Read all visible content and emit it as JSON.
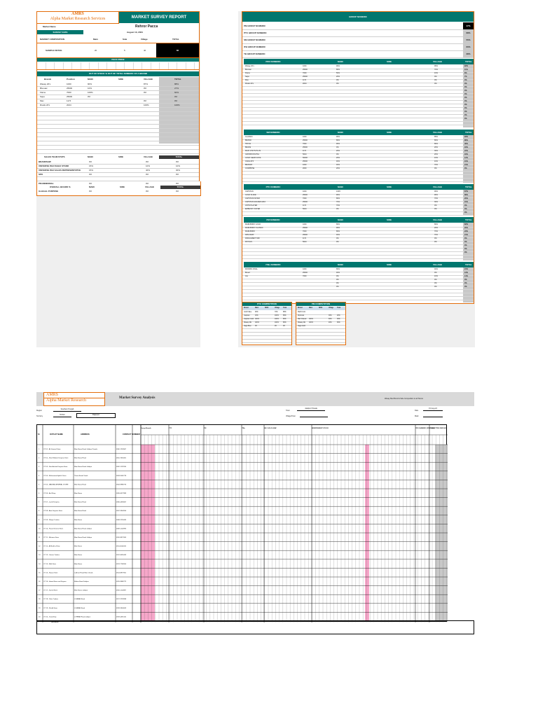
{
  "report": {
    "logo_title": "AMRS",
    "logo_subtitle": "Alpha Market Research Services",
    "title": "MARKET SURVEY REPORT",
    "market_name_label": "Market Name",
    "market_name": "Rehror Pacca",
    "survey_date_label": "SURVEY DATE",
    "survey_date": "August 13, 2024",
    "composition_label": "MARKET COMPOSITION",
    "comp_headers": [
      "Main",
      "Side",
      "Village",
      "TOTAL"
    ],
    "sample_label": "SAMPLE DETAIL",
    "sample_values": [
      "20",
      "5",
      "40",
      "65"
    ],
    "pack_price_label": "PACK PRICE",
    "oos_title": "OUT OF STOCK % OUT OF TOTAL NUMERIC OF A BRAND",
    "oos_headers": [
      "Brands",
      "Position",
      "MAIN",
      "SIDE",
      "VILLAGE",
      "TOTAL"
    ],
    "oos_rows": [
      [
        "Wasay 20's",
        "1000",
        "90%",
        "",
        "87%",
        "88%"
      ],
      [
        "Bivouac",
        "25000",
        "10%",
        "",
        "0%",
        "27%"
      ],
      [
        "Flame",
        "7000",
        "100%",
        "",
        "0%",
        "60%"
      ],
      [
        "Sapo",
        "25000",
        "0%",
        "",
        "",
        "0%"
      ],
      [
        "Max",
        "1174",
        "",
        "",
        "0%",
        "0%"
      ],
      [
        "Rivals 20's",
        "2024",
        "",
        "",
        "100%",
        "100%"
      ]
    ],
    "sales_header": [
      "SALES TEAM STATS",
      "MAIN",
      "SIDE",
      "VILLAGE",
      "TOTAL"
    ],
    "sales_rows": [
      [
        "BRANDSAW",
        "0%",
        "",
        "0%",
        "0%"
      ],
      [
        "UNIVERSE WAI RAHAI STAND",
        "15%",
        "",
        "10%",
        "10%"
      ],
      [
        "UNIVERSE WAI SALES REPRESENTATIVE",
        "15%",
        "",
        "40%",
        "30%"
      ],
      [
        "SPO",
        "0%",
        "",
        "0%",
        "0%"
      ]
    ],
    "display_header": [
      "DISPLAY POS %",
      "MAIN",
      "SIDE",
      "VILLAGE",
      "TOTAL"
    ],
    "display_rows": [
      [
        "PM MEMORIAL",
        "0%",
        "",
        "0%",
        "0%"
      ]
    ],
    "visibility_header": [
      "OVERALL BOARD %",
      "MAIN",
      "SIDE",
      "VILLAGE",
      "TOTAL"
    ],
    "visibility_rows": [
      [
        "ILLEGAL PURPOSE",
        "0%",
        "",
        "0%",
        "0%"
      ]
    ]
  },
  "group_numeric": {
    "title": "GROUP NUMERIC",
    "rows": [
      [
        "PM GROUP NUMERIC",
        "47%"
      ],
      [
        "PTC GROUP NUMERIC",
        "68%"
      ],
      [
        "SM GROUP NUMERIC",
        "55%"
      ],
      [
        "ITB GROUP NUMERIC",
        "60%"
      ],
      [
        "TB GROUP NUMERIC",
        "38%"
      ]
    ],
    "sections": [
      {
        "title": "PRO NUMERIC",
        "headers": [
          "MAIN",
          "SIDE",
          "VILLAGE",
          "TOTAL"
        ],
        "rows": [
          [
            "Wasay 20's",
            "1000",
            "90%",
            "",
            "96%",
            "92%"
          ],
          [
            "Bivouac",
            "25000",
            "80%",
            "",
            "70%",
            "11%"
          ],
          [
            "Flame",
            "7000",
            "50%",
            "",
            "10%",
            "8%"
          ],
          [
            "Sapo",
            "25000",
            "20%",
            "",
            "0%",
            "7%"
          ],
          [
            "Max",
            "1174",
            "0%",
            "",
            "0%",
            "0%"
          ],
          [
            "Rivals 20's",
            "2024",
            "0%",
            "",
            "0%",
            "0%"
          ]
        ],
        "extra_totals": [
          "0%",
          "0%",
          "0%",
          "0%",
          "0%",
          "0%",
          "0%",
          "0%",
          "0%",
          "0%"
        ]
      },
      {
        "title": "SM NUMERIC",
        "headers": [
          "MAIN",
          "SIDE",
          "VILLAGE",
          "TOTAL"
        ],
        "rows": [
          [
            "CLASSIC",
            "1000",
            "90%",
            "",
            "85%",
            "93%"
          ],
          [
            "BRAND",
            "25000",
            "80%",
            "",
            "80%",
            "88%"
          ],
          [
            "TRIVIA",
            "7000",
            "90%",
            "",
            "80%",
            "48%"
          ],
          [
            "BRAVE",
            "25000",
            "0%",
            "",
            "20%",
            "18%"
          ],
          [
            "MAXI VOLTS PLUS",
            "1174",
            "20%",
            "",
            "30%",
            "22%"
          ],
          [
            "GROWN DIGITAL",
            "5024",
            "0%",
            "",
            "20%",
            "18%"
          ],
          [
            "GOLD GEAR GOOL",
            "50000",
            "20%",
            "",
            "10%",
            "12%"
          ],
          [
            "CAFE 20'S",
            "25000",
            "40%",
            "",
            "10%",
            "10%"
          ],
          [
            "BRANDS",
            "1000",
            "40%",
            "",
            "70%",
            "21%"
          ],
          [
            "COMPRISE",
            "2000",
            "20%",
            "",
            "0%",
            "0%"
          ]
        ],
        "extra_totals": []
      },
      {
        "title": "PTC NUMERIC",
        "headers": [
          "MAIN",
          "SIDE",
          "VILLAGE",
          "TOTAL"
        ],
        "rows": [
          [
            "CAPSTAN",
            "1000",
            "100%",
            "",
            "90%",
            "67%"
          ],
          [
            "GOLD FLAKE",
            "25000",
            "90%",
            "",
            "90%",
            "68%"
          ],
          [
            "CAPSTAN FILTER",
            "7000",
            "80%",
            "",
            "70%",
            "20%"
          ],
          [
            "CAPSTAN GOLDEN MAX",
            "25000",
            "70%",
            "",
            "30%",
            "15%"
          ],
          [
            "JOHN PLAYER",
            "1174",
            "70%",
            "",
            "0%",
            "0%"
          ],
          [
            "EMBASSY FILTER",
            "5024",
            "0%",
            "",
            "0%",
            "0%"
          ]
        ],
        "extra_totals": [
          "0%"
        ]
      },
      {
        "title": "PM NUMERIC",
        "headers": [
          "MAIN",
          "SIDE",
          "VILLAGE",
          "TOTAL"
        ],
        "rows": [
          [
            "MARLBORO GOLD",
            "1000",
            "80%",
            "",
            "80%",
            "82%"
          ],
          [
            "MARLBORO CLASSIC",
            "25000",
            "90%",
            "",
            "20%",
            "20%"
          ],
          [
            "MARLBORO",
            "7000",
            "80%",
            "",
            "70%",
            "23%"
          ],
          [
            "DIPLOMAT",
            "25000",
            "40%",
            "",
            "70%",
            "21%"
          ],
          [
            "PARLIAMENT MM",
            "1174",
            "0%",
            "",
            "0%",
            "0%"
          ],
          [
            "ROYALS",
            "5024",
            "0%",
            "",
            "0%",
            "0%"
          ]
        ],
        "extra_totals": [
          "0%",
          "0%",
          "0%"
        ]
      },
      {
        "title": "ITBs NUMERIC",
        "headers": [
          "MAIN",
          "SIDE",
          "VILLAGE",
          "TOTAL"
        ],
        "rows": [
          [
            "MORRIS FINAL",
            "1000",
            "80%",
            "",
            "40%",
            "21%"
          ],
          [
            "Breed",
            "25000",
            "40%",
            "",
            "0%",
            "13%"
          ],
          [
            "Vex",
            "7000",
            "0%",
            "",
            "10%",
            "14%"
          ],
          [
            "",
            "",
            "0%",
            "",
            "0%",
            "0%"
          ],
          [
            "",
            "",
            "0%",
            "",
            "0%",
            "0%"
          ],
          [
            "",
            "",
            "0%",
            "",
            "0%",
            "0%"
          ]
        ],
        "extra_totals": []
      }
    ],
    "mini_table_left": {
      "title": "PTC COMPETITION",
      "headers": [
        "Brand",
        "Main",
        "SIDE",
        "Village",
        "Total"
      ],
      "rows": [
        [
          "Gold Flake",
          "90%",
          "",
          "70%",
          "88%"
        ],
        [
          "Capstan",
          "10%",
          "",
          "100%",
          "89%"
        ],
        [
          "Capstan Gold",
          "100%",
          "",
          "100%",
          "80%"
        ],
        [
          "Wasay 20s",
          "100%",
          "",
          "100%",
          "80%"
        ],
        [
          "Saga Blue",
          "0%",
          "",
          "0%",
          "0%"
        ]
      ]
    },
    "mini_table_right": {
      "title": "PM COMPETITION",
      "headers": [
        "Brand",
        "Main",
        "SIDE",
        "Village",
        "Total"
      ],
      "rows": [
        [
          "Marlb Gold",
          "",
          "",
          "",
          ""
        ],
        [
          "Diplomat",
          "",
          "",
          "30%",
          "20%"
        ],
        [
          "Marl Classic",
          "100%",
          "",
          "60%",
          "30%"
        ],
        [
          "Wasay 20s",
          "100%",
          "",
          "40%",
          "60%"
        ],
        [
          "Saga Gold",
          "",
          "",
          "",
          ""
        ]
      ]
    }
  },
  "analysis": {
    "logo_title": "AMRS",
    "logo_subtitle": "Alpha Market Research",
    "title": "Market Survey Analysis",
    "right_note": "Wasay Bed Bond & Side Competition to all Stores",
    "region_label": "Region",
    "region_value": "Southern Punjab",
    "territory_label": "Territory",
    "territory_value": "Multan",
    "city_value": "Rajanpur",
    "town_label": "Town",
    "town_value": "Jalalpur Pirwala",
    "village_label": "Village/Town",
    "date_label": "Date",
    "date_value": "15-Aug-24",
    "mark_label": "Mark",
    "col_headers": [
      "Sr",
      "OUTLET NAME",
      "ADDRESS",
      "CONTACT NUMBER"
    ],
    "group_headers": [
      "Group Brands",
      "PTC",
      "PM",
      "ITBs",
      "SM / GOLD LEAF",
      "INDEPENDENT STOCK",
      "PRO NUMERIC (PRICING)",
      "CIGARETTES DISPLAY"
    ],
    "outlets": [
      [
        "OT 01 - Ali General Store",
        "Main Bazar Road Jalalpur Pirwala",
        "0300-1234567"
      ],
      [
        "OT 02 - Shah Madani Karyana Store",
        "Main Bazar Road",
        "0301-7654321"
      ],
      [
        "OT 03 - New Arshad Karyana Store",
        "Main Bazar Road Jalalpur",
        "0302-1122334"
      ],
      [
        "OT 04 - Muhammad Iqbal & Sons",
        "Thana Road Chowk",
        "0303-5566778"
      ],
      [
        "OT 05 - MADINA GENERAL STORE",
        "Main Bazar Road",
        "0304-9988776"
      ],
      [
        "OT 06 - Asif Shop",
        "Main Bazar",
        "0305-6677889"
      ],
      [
        "OT 07 - Javed Karyana",
        "Main Bazar Road",
        "0306-4455667"
      ],
      [
        "OT 08 - Amir Karyana Store",
        "Main Bazar Road",
        "0307-3344556"
      ],
      [
        "OT 09 - Waqas Traders",
        "Main Bazar",
        "0308-2233445"
      ],
      [
        "OT 10 - Faisal General Store",
        "Main Bazar Road Jalalpur",
        "0309-1122993"
      ],
      [
        "OT 11 - Rehman Store",
        "Main Bazar Road Jalalpur",
        "0310-8877665"
      ],
      [
        "OT 12 - Al Madina Shop",
        "Main Bazar",
        "0311-5544332"
      ],
      [
        "OT 13 - Usman Traders",
        "Main Bazar",
        "0312-6655443"
      ],
      [
        "OT 14 - Bilal Store",
        "Main Bazar",
        "0313-7766554"
      ],
      [
        "OT 15 - Nawaz Store",
        "Lodhran Road Main Chowk",
        "0314-8877661"
      ],
      [
        "OT 16 - Hamid Store and Kiryana",
        "Multan Road Jalalpur",
        "0315-9988772"
      ],
      [
        "OT 17 - Saeed Store",
        "Main Bazar Jalalpur",
        "0316-1122887"
      ],
      [
        "OT 18 - Zafar Traders",
        "LOHRAN Road",
        "0317-2233998"
      ],
      [
        "OT 19 - Khalid Store",
        "LOHRAN Road",
        "0318-3344009"
      ],
      [
        "OT 20 - Tariq Shop",
        "LOHRAN Road Jalalpur",
        "0319-4455110"
      ]
    ],
    "totals_label": "Totals",
    "remarks_label": "Remarks:"
  }
}
